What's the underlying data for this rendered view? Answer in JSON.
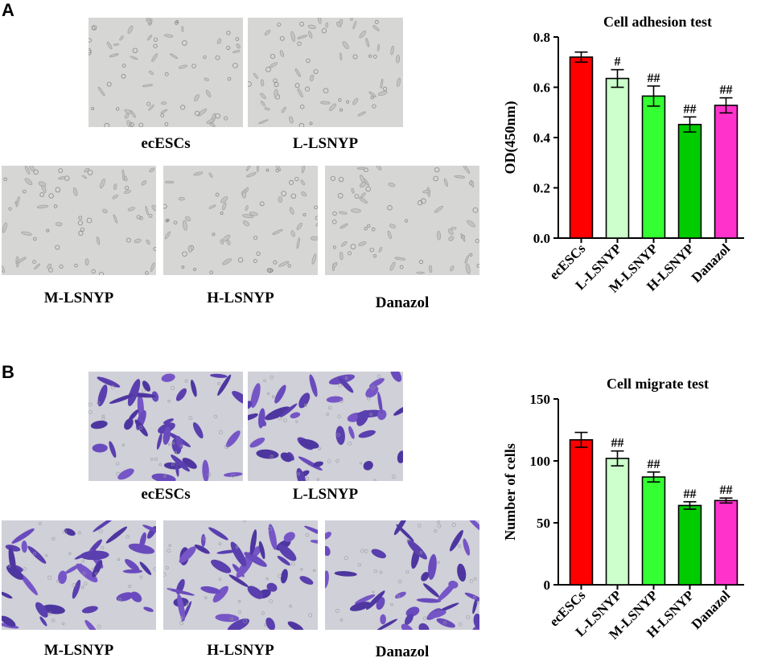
{
  "panels": [
    {
      "letter": "A",
      "micrographs": {
        "style": "phase-contrast-gray",
        "labels": [
          "ecESCs",
          "L-LSNYP",
          "M-LSNYP",
          "H-LSNYP",
          "Danazol"
        ]
      }
    },
    {
      "letter": "B",
      "micrographs": {
        "style": "crystal-violet-stained",
        "labels": [
          "ecESCs",
          "L-LSNYP",
          "M-LSNYP",
          "H-LSNYP",
          "Danazol"
        ]
      }
    }
  ],
  "chart_data": [
    {
      "type": "bar",
      "title": "Cell adhesion test",
      "xlabel": "",
      "ylabel": "OD(450nm)",
      "categories": [
        "ecESCs",
        "L-LSNYP",
        "M-LSNYP",
        "H-LSNYP",
        "Danazol"
      ],
      "values": [
        0.72,
        0.635,
        0.565,
        0.452,
        0.528
      ],
      "errors": [
        0.02,
        0.035,
        0.04,
        0.03,
        0.03
      ],
      "annotations": [
        "",
        "#",
        "##",
        "##",
        "##"
      ],
      "colors": [
        "#ff0000",
        "#ccffcc",
        "#33ff33",
        "#00cc00",
        "#ff33cc"
      ],
      "ylim": [
        0,
        0.8
      ],
      "yticks": [
        "0.0",
        "0.2",
        "0.4",
        "0.6",
        "0.8"
      ],
      "grid": false
    },
    {
      "type": "bar",
      "title": "Cell migrate test",
      "xlabel": "",
      "ylabel": "Number of cells",
      "categories": [
        "ecESCs",
        "L-LSNYP",
        "M-LSNYP",
        "H-LSNYP",
        "Danazol"
      ],
      "values": [
        117,
        102,
        87,
        64,
        68
      ],
      "errors": [
        6,
        6,
        4,
        3,
        2
      ],
      "annotations": [
        "",
        "##",
        "##",
        "##",
        "##"
      ],
      "colors": [
        "#ff0000",
        "#ccffcc",
        "#33ff33",
        "#00cc00",
        "#ff33cc"
      ],
      "ylim": [
        0,
        150
      ],
      "yticks": [
        "0",
        "50",
        "100",
        "150"
      ],
      "grid": false
    }
  ]
}
